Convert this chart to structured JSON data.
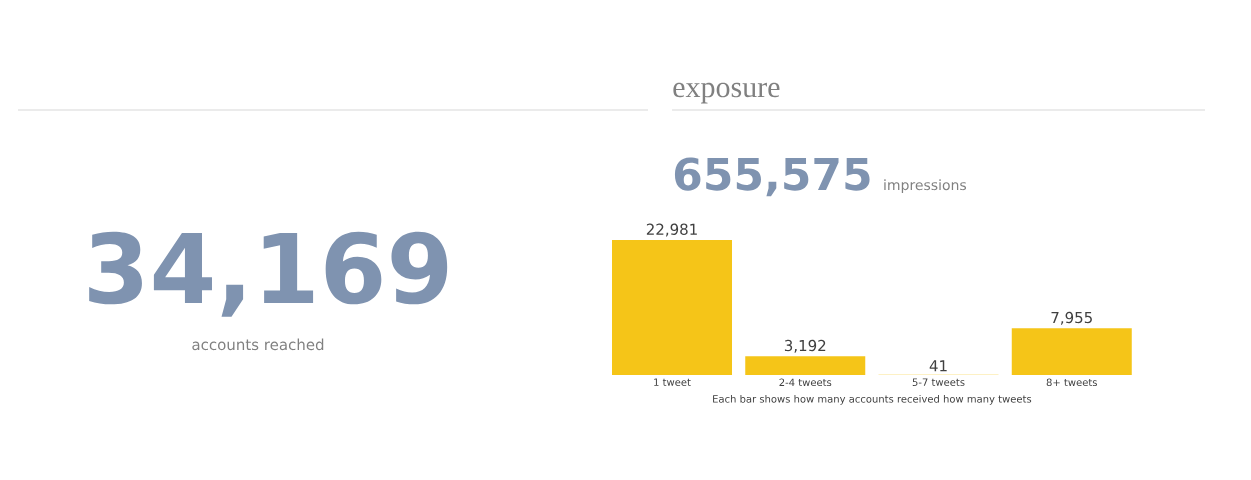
{
  "chart_data": [
    {
      "type": "other",
      "title": "34,169",
      "subtitle": "accounts reached"
    },
    {
      "type": "bar",
      "title": "exposure",
      "annotations": [
        "655,575",
        "impressions"
      ],
      "categories": [
        "1 tweet",
        "2-4 tweets",
        "5-7 tweets",
        "8+ tweets"
      ],
      "values": [
        22981,
        3192,
        41,
        7955
      ],
      "value_labels": [
        "22,981",
        "3,192",
        "41",
        "7,955"
      ],
      "color": "#f5c518",
      "xlabel": "Each bar shows how many accounts received how many tweets"
    }
  ]
}
